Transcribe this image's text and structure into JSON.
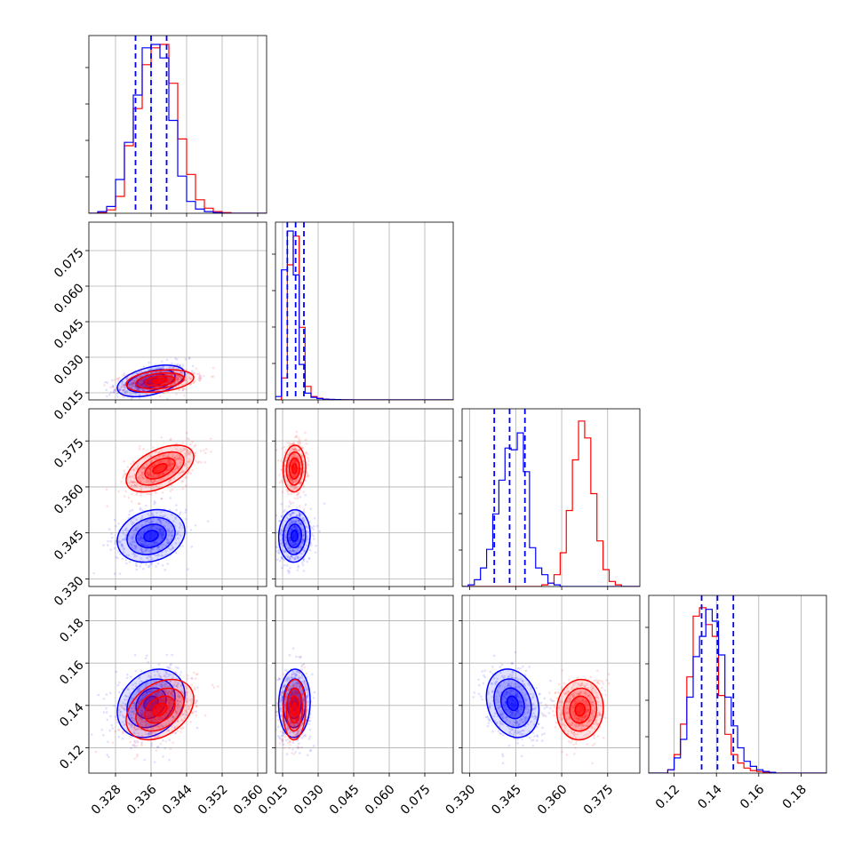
{
  "chart_data": {
    "type": "corner",
    "grid": true,
    "parameters": [
      {
        "ticks": [
          0.328,
          0.336,
          0.344,
          0.352,
          0.36
        ],
        "tick_labels": [
          "0.328",
          "0.336",
          "0.344",
          "0.352",
          "0.360"
        ],
        "range": [
          0.322,
          0.362
        ]
      },
      {
        "ticks": [
          0.015,
          0.03,
          0.045,
          0.06,
          0.075
        ],
        "tick_labels": [
          "0.015",
          "0.030",
          "0.045",
          "0.060",
          "0.075"
        ],
        "range": [
          0.012,
          0.087
        ]
      },
      {
        "ticks": [
          0.33,
          0.345,
          0.36,
          0.375
        ],
        "tick_labels": [
          "0.330",
          "0.345",
          "0.360",
          "0.375"
        ],
        "range": [
          0.3275,
          0.3855
        ]
      },
      {
        "ticks": [
          0.12,
          0.14,
          0.16,
          0.18
        ],
        "tick_labels": [
          "0.12",
          "0.14",
          "0.16",
          "0.18"
        ],
        "range": [
          0.108,
          0.192
        ]
      }
    ],
    "series": [
      {
        "color": "#0000ff",
        "marginals": [
          {
            "edges": [
              0.322,
              0.324,
              0.326,
              0.328,
              0.33,
              0.332,
              0.334,
              0.336,
              0.338,
              0.34,
              0.342,
              0.344,
              0.346,
              0.348,
              0.35,
              0.352,
              0.354,
              0.356,
              0.358,
              0.36,
              0.362
            ],
            "values": [
              0,
              0.01,
              0.04,
              0.2,
              0.42,
              0.7,
              0.98,
              1.0,
              0.92,
              0.55,
              0.22,
              0.07,
              0.025,
              0.01,
              0.004,
              0,
              0,
              0,
              0,
              0
            ]
          },
          {
            "edges": [
              0.012,
              0.0145,
              0.017,
              0.0195,
              0.022,
              0.0245,
              0.027,
              0.0295,
              0.032,
              0.0345,
              0.037,
              0.0395,
              0.042,
              0.0445,
              0.047,
              0.0495,
              0.052,
              0.0545,
              0.057,
              0.0595,
              0.062,
              0.0645,
              0.067,
              0.0695,
              0.072,
              0.0745,
              0.077,
              0.0795,
              0.082,
              0.0845,
              0.087
            ],
            "values": [
              0.02,
              0.77,
              1.0,
              0.74,
              0.21,
              0.04,
              0.015,
              0.008,
              0.004,
              0.003,
              0.002,
              0.001,
              0.001,
              0,
              0,
              0,
              0,
              0,
              0,
              0,
              0,
              0,
              0,
              0,
              0,
              0,
              0,
              0,
              0,
              0
            ]
          },
          {
            "edges": [
              0.3275,
              0.3295,
              0.3315,
              0.3335,
              0.3355,
              0.3375,
              0.3395,
              0.3415,
              0.3435,
              0.3455,
              0.3475,
              0.3495,
              0.3515,
              0.3535,
              0.3555,
              0.3575,
              0.3595,
              0.3615,
              0.3635,
              0.3655,
              0.3675,
              0.3695,
              0.3715,
              0.3735,
              0.3755,
              0.3775,
              0.3795,
              0.3815,
              0.3835,
              0.3855
            ],
            "values": [
              0,
              0.01,
              0.04,
              0.11,
              0.22,
              0.43,
              0.63,
              0.82,
              0.81,
              0.91,
              0.68,
              0.23,
              0.11,
              0.07,
              0.02,
              0.01,
              0,
              0,
              0,
              0,
              0,
              0,
              0,
              0,
              0,
              0,
              0,
              0,
              0
            ]
          },
          {
            "edges": [
              0.108,
              0.111,
              0.114,
              0.117,
              0.12,
              0.123,
              0.126,
              0.129,
              0.132,
              0.135,
              0.138,
              0.141,
              0.144,
              0.147,
              0.15,
              0.153,
              0.156,
              0.159,
              0.162,
              0.165,
              0.168,
              0.171,
              0.174,
              0.177,
              0.18,
              0.183,
              0.186,
              0.189,
              0.192
            ],
            "values": [
              0,
              0,
              0,
              0.02,
              0.09,
              0.2,
              0.45,
              0.69,
              0.81,
              0.97,
              0.9,
              0.7,
              0.45,
              0.28,
              0.15,
              0.07,
              0.04,
              0.02,
              0.01,
              0.005,
              0,
              0,
              0,
              0,
              0,
              0,
              0,
              0
            ]
          }
        ],
        "quantile_lines": [
          [
            0.3325,
            0.336,
            0.3395
          ],
          [
            0.017,
            0.0205,
            0.024
          ],
          [
            0.338,
            0.343,
            0.348
          ],
          [
            0.133,
            0.1405,
            0.148
          ]
        ],
        "means": [
          0.336,
          0.02,
          0.344,
          0.141
        ],
        "sds": [
          0.004,
          0.0035,
          0.0045,
          0.0085
        ],
        "corr": {
          "0-1": 0.45,
          "0-2": 0.2,
          "0-3": 0.25,
          "1-2": 0.05,
          "1-3": 0.05,
          "2-3": -0.2
        }
      },
      {
        "color": "#ff0000",
        "marginals": [
          {
            "edges": [
              0.322,
              0.324,
              0.326,
              0.328,
              0.33,
              0.332,
              0.334,
              0.336,
              0.338,
              0.34,
              0.342,
              0.344,
              0.346,
              0.348,
              0.35,
              0.352,
              0.354,
              0.356,
              0.358,
              0.36,
              0.362
            ],
            "values": [
              0,
              0.004,
              0.02,
              0.1,
              0.4,
              0.62,
              0.88,
              0.98,
              1.0,
              0.77,
              0.44,
              0.23,
              0.08,
              0.03,
              0.01,
              0.004,
              0,
              0,
              0,
              0
            ]
          },
          {
            "edges": [
              0.012,
              0.0145,
              0.017,
              0.0195,
              0.022,
              0.0245,
              0.027,
              0.0295,
              0.032,
              0.0345,
              0.037,
              0.0395,
              0.042,
              0.0445,
              0.047,
              0.0495,
              0.052,
              0.0545,
              0.057,
              0.0595,
              0.062,
              0.0645,
              0.067,
              0.0695,
              0.072,
              0.0745,
              0.077,
              0.0795,
              0.082,
              0.0845,
              0.087
            ],
            "values": [
              0,
              0.13,
              0.8,
              0.97,
              0.43,
              0.08,
              0.02,
              0.01,
              0.005,
              0.003,
              0.002,
              0.001,
              0,
              0,
              0,
              0,
              0,
              0,
              0,
              0,
              0,
              0,
              0,
              0,
              0,
              0,
              0,
              0,
              0,
              0
            ]
          },
          {
            "edges": [
              0.3275,
              0.3295,
              0.3315,
              0.3335,
              0.3355,
              0.3375,
              0.3395,
              0.3415,
              0.3435,
              0.3455,
              0.3475,
              0.3495,
              0.3515,
              0.3535,
              0.3555,
              0.3575,
              0.3595,
              0.3615,
              0.3635,
              0.3655,
              0.3675,
              0.3695,
              0.3715,
              0.3735,
              0.3755,
              0.3775,
              0.3795,
              0.3815,
              0.3835,
              0.3855
            ],
            "values": [
              0,
              0,
              0,
              0,
              0,
              0,
              0,
              0,
              0,
              0,
              0,
              0,
              0,
              0.01,
              0.02,
              0.07,
              0.2,
              0.45,
              0.75,
              0.98,
              0.88,
              0.55,
              0.27,
              0.1,
              0.03,
              0.01,
              0,
              0,
              0
            ]
          },
          {
            "edges": [
              0.108,
              0.111,
              0.114,
              0.117,
              0.12,
              0.123,
              0.126,
              0.129,
              0.132,
              0.135,
              0.138,
              0.141,
              0.144,
              0.147,
              0.15,
              0.153,
              0.156,
              0.159,
              0.162,
              0.165,
              0.168,
              0.171,
              0.174,
              0.177,
              0.18,
              0.183,
              0.186,
              0.189,
              0.192
            ],
            "values": [
              0,
              0,
              0,
              0.02,
              0.11,
              0.29,
              0.57,
              0.93,
              0.98,
              0.88,
              0.81,
              0.46,
              0.23,
              0.11,
              0.06,
              0.03,
              0.015,
              0.01,
              0.005,
              0,
              0,
              0,
              0,
              0,
              0,
              0,
              0,
              0
            ]
          }
        ],
        "means": [
          0.338,
          0.02,
          0.366,
          0.138
        ],
        "sds": [
          0.004,
          0.0025,
          0.004,
          0.0075
        ],
        "corr": {
          "0-1": 0.3,
          "0-2": 0.5,
          "0-3": 0.35,
          "1-2": 0.05,
          "1-3": 0.05,
          "2-3": 0.05
        }
      }
    ]
  }
}
